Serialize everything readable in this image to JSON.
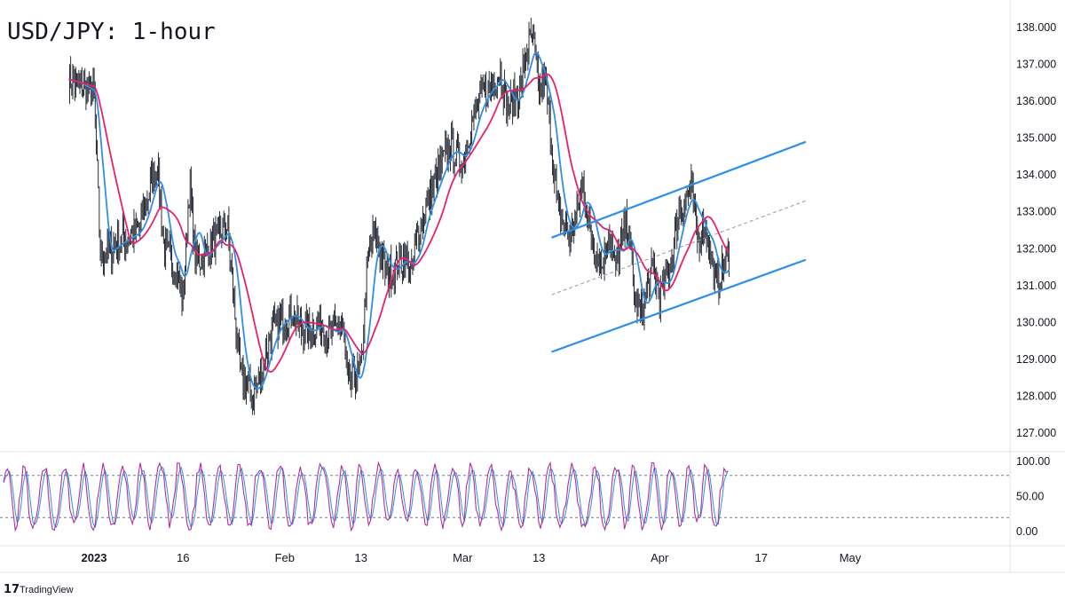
{
  "chart_data": [
    {
      "type": "candlestick",
      "title": "USD/JPY: 1-hour",
      "ylim": [
        127.0,
        138.0
      ],
      "yticks": [
        "127.000",
        "128.000",
        "129.000",
        "130.000",
        "131.000",
        "132.000",
        "133.000",
        "134.000",
        "135.000",
        "136.000",
        "137.000",
        "138.000"
      ],
      "x_ticks": [
        "2023",
        "16",
        "Feb",
        "13",
        "Mar",
        "13",
        "Apr",
        "17",
        "May"
      ],
      "price_path": [
        {
          "date": "2022-12-29",
          "value": 136.6
        },
        {
          "date": "2023-01-02",
          "value": 136.2
        },
        {
          "date": "2023-01-03",
          "value": 131.8
        },
        {
          "date": "2023-01-06",
          "value": 132.2
        },
        {
          "date": "2023-01-09",
          "value": 132.5
        },
        {
          "date": "2023-01-11",
          "value": 133.8
        },
        {
          "date": "2023-01-12",
          "value": 134.3
        },
        {
          "date": "2023-01-13",
          "value": 132.0
        },
        {
          "date": "2023-01-15",
          "value": 131.5
        },
        {
          "date": "2023-01-16",
          "value": 130.5
        },
        {
          "date": "2023-01-17",
          "value": 133.8
        },
        {
          "date": "2023-01-18",
          "value": 131.6
        },
        {
          "date": "2023-01-20",
          "value": 132.0
        },
        {
          "date": "2023-01-23",
          "value": 132.6
        },
        {
          "date": "2023-01-24",
          "value": 130.5
        },
        {
          "date": "2023-01-25",
          "value": 128.6
        },
        {
          "date": "2023-01-27",
          "value": 128.0
        },
        {
          "date": "2023-01-28",
          "value": 128.5
        },
        {
          "date": "2023-01-30",
          "value": 129.8
        },
        {
          "date": "2023-02-02",
          "value": 130.3
        },
        {
          "date": "2023-02-04",
          "value": 129.7
        },
        {
          "date": "2023-02-07",
          "value": 130.0
        },
        {
          "date": "2023-02-08",
          "value": 129.6
        },
        {
          "date": "2023-02-10",
          "value": 130.0
        },
        {
          "date": "2023-02-11",
          "value": 128.3
        },
        {
          "date": "2023-02-13",
          "value": 128.7
        },
        {
          "date": "2023-02-14",
          "value": 131.5
        },
        {
          "date": "2023-02-15",
          "value": 132.5
        },
        {
          "date": "2023-02-17",
          "value": 131.3
        },
        {
          "date": "2023-02-20",
          "value": 131.8
        },
        {
          "date": "2023-02-21",
          "value": 131.3
        },
        {
          "date": "2023-02-22",
          "value": 132.5
        },
        {
          "date": "2023-02-24",
          "value": 133.5
        },
        {
          "date": "2023-02-25",
          "value": 134.0
        },
        {
          "date": "2023-02-27",
          "value": 134.8
        },
        {
          "date": "2023-03-01",
          "value": 134.3
        },
        {
          "date": "2023-03-02",
          "value": 135.2
        },
        {
          "date": "2023-03-04",
          "value": 136.2
        },
        {
          "date": "2023-03-05",
          "value": 136.3
        },
        {
          "date": "2023-03-07",
          "value": 136.8
        },
        {
          "date": "2023-03-08",
          "value": 135.8
        },
        {
          "date": "2023-03-10",
          "value": 136.3
        },
        {
          "date": "2023-03-11",
          "value": 137.3
        },
        {
          "date": "2023-03-12",
          "value": 137.8
        },
        {
          "date": "2023-03-13",
          "value": 136.2
        },
        {
          "date": "2023-03-14",
          "value": 136.6
        },
        {
          "date": "2023-03-15",
          "value": 134.8
        },
        {
          "date": "2023-03-16",
          "value": 133.0
        },
        {
          "date": "2023-03-18",
          "value": 132.3
        },
        {
          "date": "2023-03-20",
          "value": 133.8
        },
        {
          "date": "2023-03-21",
          "value": 132.4
        },
        {
          "date": "2023-03-23",
          "value": 131.5
        },
        {
          "date": "2023-03-24",
          "value": 132.5
        },
        {
          "date": "2023-03-25",
          "value": 131.5
        },
        {
          "date": "2023-03-27",
          "value": 132.8
        },
        {
          "date": "2023-03-28",
          "value": 130.7
        },
        {
          "date": "2023-03-29",
          "value": 130.2
        },
        {
          "date": "2023-03-31",
          "value": 131.5
        },
        {
          "date": "2023-04-01",
          "value": 130.7
        },
        {
          "date": "2023-04-03",
          "value": 131.8
        },
        {
          "date": "2023-04-04",
          "value": 133.0
        },
        {
          "date": "2023-04-06",
          "value": 133.6
        },
        {
          "date": "2023-04-07",
          "value": 132.2
        },
        {
          "date": "2023-04-08",
          "value": 132.8
        },
        {
          "date": "2023-04-09",
          "value": 131.8
        },
        {
          "date": "2023-04-10",
          "value": 131.0
        },
        {
          "date": "2023-04-11",
          "value": 131.5
        },
        {
          "date": "2023-04-12",
          "value": 131.9
        }
      ],
      "ma_fast_color": "#2f8fe8",
      "ma_slow_color": "#e9216b",
      "channel": {
        "color": "#2f8fe8",
        "upper": {
          "from": {
            "date": "2023-03-15",
            "value": 132.3
          },
          "to": {
            "date": "2023-04-24",
            "value": 134.9
          }
        },
        "lower": {
          "from": {
            "date": "2023-03-15",
            "value": 129.2
          },
          "to": {
            "date": "2023-04-24",
            "value": 131.7
          }
        },
        "mid": {
          "from": {
            "date": "2023-03-15",
            "value": 130.75
          },
          "to": {
            "date": "2023-04-24",
            "value": 133.3
          }
        }
      }
    },
    {
      "type": "line",
      "ylim": [
        0,
        100
      ],
      "yticks": [
        "0.00",
        "50.00",
        "100.00"
      ],
      "levels": [
        20,
        80
      ],
      "k_color": "#b02fa0",
      "d_color": "#2f8fe8"
    }
  ],
  "footer": {
    "brand": "TradingView"
  }
}
